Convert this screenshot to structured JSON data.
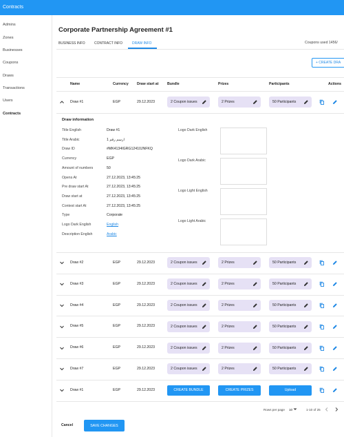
{
  "topbar": {
    "title": "Contracts"
  },
  "sidebar": {
    "items": [
      "Admins",
      "Zones",
      "Businesses",
      "Coupons",
      "Draws",
      "Transactions",
      "Users",
      "Contracts"
    ]
  },
  "header": {
    "title": "Corporate Partnership Agreement #1",
    "tabs": [
      "BUSINESS INFO",
      "CONTRACT INFO",
      "DRAW INFO"
    ],
    "coupons_used": "Coupons used 1456/",
    "create_button": "+  CREATE DRA"
  },
  "table": {
    "columns": [
      "Name",
      "Currency",
      "Draw start at",
      "Bundle",
      "Prizes",
      "Participants",
      "Actions"
    ],
    "rows": [
      [
        "Draw #1",
        "EGP",
        "29.12.2023",
        "2 Coupon issues",
        "2 Prizes",
        "50 Participants"
      ],
      [
        "Draw #2",
        "EGP",
        "29.12.2023",
        "2 Coupon issues",
        "2 Prizes",
        "50 Participants"
      ],
      [
        "Draw #3",
        "EGP",
        "29.12.2023",
        "2 Coupon issues",
        "2 Prizes",
        "50 Participants"
      ],
      [
        "Draw #4",
        "EGP",
        "29.12.2023",
        "2 Coupon issues",
        "2 Prizes",
        "50 Participants"
      ],
      [
        "Draw #5",
        "EGP",
        "29.12.2023",
        "2 Coupon issues",
        "2 Prizes",
        "50 Participants"
      ],
      [
        "Draw #6",
        "EGP",
        "29.12.2023",
        "2 Coupon issues",
        "2 Prizes",
        "50 Participants"
      ],
      [
        "Draw #7",
        "EGP",
        "29.12.2023",
        "2 Coupon issues",
        "2 Prizes",
        "50 Participants"
      ],
      [
        "Draw #1",
        "EGP",
        "29.12.2023",
        "CREATE BUNDLE",
        "CREATE PRIZES",
        "Upload"
      ]
    ]
  },
  "details": {
    "title": "Draw information",
    "fields": [
      [
        "Title English",
        "Draw #1"
      ],
      [
        "Title Arabic",
        "ارسم رقم 1"
      ],
      [
        "Draw ID",
        "#MK4134IGRG12410JNFKQ"
      ],
      [
        "Currency",
        "EGP"
      ],
      [
        "Amount of numbers",
        "50"
      ],
      [
        "Opens At",
        "27.12.2023, 13:45:25"
      ],
      [
        "Pre draw start At",
        "27.12.2023, 13:45:25"
      ],
      [
        "Draw start at",
        "27.12.2023, 13:45:25"
      ],
      [
        "Contest start At",
        "27.12.2023, 13:45:25"
      ],
      [
        "Type",
        "Corporate"
      ],
      [
        "Logo Dark English",
        "English"
      ],
      [
        "Description English",
        "Arabic"
      ]
    ],
    "logos": [
      "Logo Dark English",
      "Logo Dark Arabic",
      "Logo Light English",
      "Logo Light Arabic"
    ]
  },
  "pagination": {
    "rows_per_page": "Rows per page",
    "page_size": "10",
    "range": "1-10 of 25"
  },
  "footer": {
    "cancel": "Cancel",
    "save": "SAVE CHANGES"
  }
}
